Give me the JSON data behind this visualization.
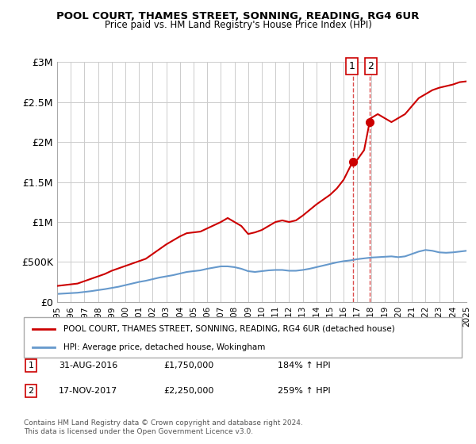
{
  "title": "POOL COURT, THAMES STREET, SONNING, READING, RG4 6UR",
  "subtitle": "Price paid vs. HM Land Registry's House Price Index (HPI)",
  "legend_line1": "POOL COURT, THAMES STREET, SONNING, READING, RG4 6UR (detached house)",
  "legend_line2": "HPI: Average price, detached house, Wokingham",
  "annotation1_label": "1",
  "annotation1_date": "31-AUG-2016",
  "annotation1_price": "£1,750,000",
  "annotation1_hpi": "184% ↑ HPI",
  "annotation2_label": "2",
  "annotation2_date": "17-NOV-2017",
  "annotation2_price": "£2,250,000",
  "annotation2_hpi": "259% ↑ HPI",
  "footer": "Contains HM Land Registry data © Crown copyright and database right 2024.\nThis data is licensed under the Open Government Licence v3.0.",
  "red_color": "#cc0000",
  "blue_color": "#6699cc",
  "dashed_color": "#cc0000",
  "background_color": "#ffffff",
  "grid_color": "#cccccc",
  "ylim": [
    0,
    3000000
  ],
  "yticks": [
    0,
    500000,
    1000000,
    1500000,
    2000000,
    2500000,
    3000000
  ],
  "ytick_labels": [
    "£0",
    "£500K",
    "£1M",
    "£1.5M",
    "£2M",
    "£2.5M",
    "£3M"
  ],
  "red_x": [
    1995.0,
    1995.5,
    1996.0,
    1996.5,
    1997.0,
    1997.5,
    1998.0,
    1998.5,
    1999.0,
    1999.5,
    2000.0,
    2000.5,
    2001.0,
    2001.5,
    2002.0,
    2002.5,
    2003.0,
    2003.5,
    2004.0,
    2004.5,
    2005.0,
    2005.5,
    2006.0,
    2006.5,
    2007.0,
    2007.5,
    2008.0,
    2008.5,
    2009.0,
    2009.5,
    2010.0,
    2010.5,
    2011.0,
    2011.5,
    2012.0,
    2012.5,
    2013.0,
    2013.5,
    2014.0,
    2014.5,
    2015.0,
    2015.5,
    2016.0,
    2016.5,
    2016.667,
    2017.0,
    2017.5,
    2017.9,
    2018.0,
    2018.5,
    2019.0,
    2019.5,
    2020.0,
    2020.5,
    2021.0,
    2021.5,
    2022.0,
    2022.5,
    2023.0,
    2023.5,
    2024.0,
    2024.5,
    2025.0
  ],
  "red_y": [
    200000,
    210000,
    220000,
    230000,
    260000,
    290000,
    320000,
    350000,
    390000,
    420000,
    450000,
    480000,
    510000,
    540000,
    600000,
    660000,
    720000,
    770000,
    820000,
    860000,
    870000,
    880000,
    920000,
    960000,
    1000000,
    1050000,
    1000000,
    950000,
    850000,
    870000,
    900000,
    950000,
    1000000,
    1020000,
    1000000,
    1020000,
    1080000,
    1150000,
    1220000,
    1280000,
    1340000,
    1420000,
    1530000,
    1700000,
    1750000,
    1780000,
    1900000,
    2250000,
    2300000,
    2350000,
    2300000,
    2250000,
    2300000,
    2350000,
    2450000,
    2550000,
    2600000,
    2650000,
    2680000,
    2700000,
    2720000,
    2750000,
    2760000
  ],
  "blue_x": [
    1995.0,
    1995.5,
    1996.0,
    1996.5,
    1997.0,
    1997.5,
    1998.0,
    1998.5,
    1999.0,
    1999.5,
    2000.0,
    2000.5,
    2001.0,
    2001.5,
    2002.0,
    2002.5,
    2003.0,
    2003.5,
    2004.0,
    2004.5,
    2005.0,
    2005.5,
    2006.0,
    2006.5,
    2007.0,
    2007.5,
    2008.0,
    2008.5,
    2009.0,
    2009.5,
    2010.0,
    2010.5,
    2011.0,
    2011.5,
    2012.0,
    2012.5,
    2013.0,
    2013.5,
    2014.0,
    2014.5,
    2015.0,
    2015.5,
    2016.0,
    2016.5,
    2017.0,
    2017.5,
    2018.0,
    2018.5,
    2019.0,
    2019.5,
    2020.0,
    2020.5,
    2021.0,
    2021.5,
    2022.0,
    2022.5,
    2023.0,
    2023.5,
    2024.0,
    2024.5,
    2025.0
  ],
  "blue_y": [
    100000,
    105000,
    110000,
    115000,
    125000,
    135000,
    148000,
    160000,
    175000,
    190000,
    210000,
    230000,
    250000,
    265000,
    285000,
    305000,
    320000,
    335000,
    355000,
    375000,
    385000,
    395000,
    415000,
    430000,
    445000,
    445000,
    435000,
    415000,
    385000,
    375000,
    385000,
    395000,
    400000,
    400000,
    390000,
    390000,
    400000,
    415000,
    435000,
    455000,
    475000,
    495000,
    510000,
    520000,
    535000,
    545000,
    555000,
    560000,
    565000,
    570000,
    560000,
    570000,
    600000,
    630000,
    650000,
    640000,
    620000,
    615000,
    620000,
    630000,
    640000
  ],
  "marker1_x": 2016.667,
  "marker1_y": 1750000,
  "marker2_x": 2017.9,
  "marker2_y": 2250000,
  "xmin": 1995,
  "xmax": 2025
}
